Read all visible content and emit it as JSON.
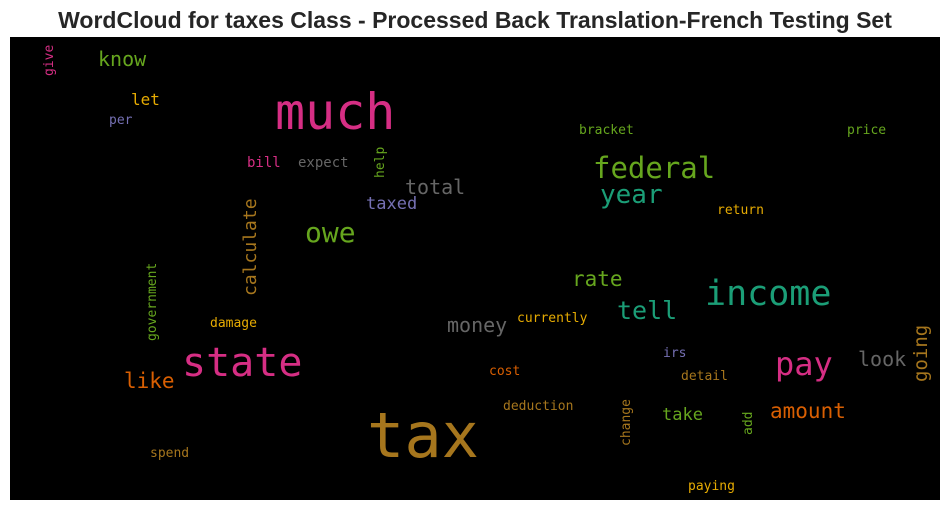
{
  "title": "WordCloud for taxes Class - Processed Back Translation-French Testing Set",
  "colors": {
    "pink": "#d62e84",
    "green": "#66a61e",
    "teal": "#1b9e77",
    "gold": "#a6761d",
    "yellow": "#e6ab02",
    "orange": "#d95f02",
    "purple": "#7570b3",
    "gray": "#666666"
  },
  "words": {
    "tax": "tax",
    "much": "much",
    "state": "state",
    "income": "income",
    "pay": "pay",
    "federal": "federal",
    "owe": "owe",
    "year": "year",
    "tell": "tell",
    "amount": "amount",
    "rate": "rate",
    "total": "total",
    "money": "money",
    "like": "like",
    "know": "know",
    "look": "look",
    "going": "going",
    "calculate": "calculate",
    "taxed": "taxed",
    "take": "take",
    "let": "let",
    "bill": "bill",
    "expect": "expect",
    "help": "help",
    "bracket": "bracket",
    "price": "price",
    "return": "return",
    "government": "government",
    "damage": "damage",
    "currently": "currently",
    "irs": "irs",
    "cost": "cost",
    "detail": "detail",
    "deduction": "deduction",
    "change": "change",
    "add": "add",
    "spend": "spend",
    "paying": "paying",
    "per": "per",
    "give": "give"
  }
}
